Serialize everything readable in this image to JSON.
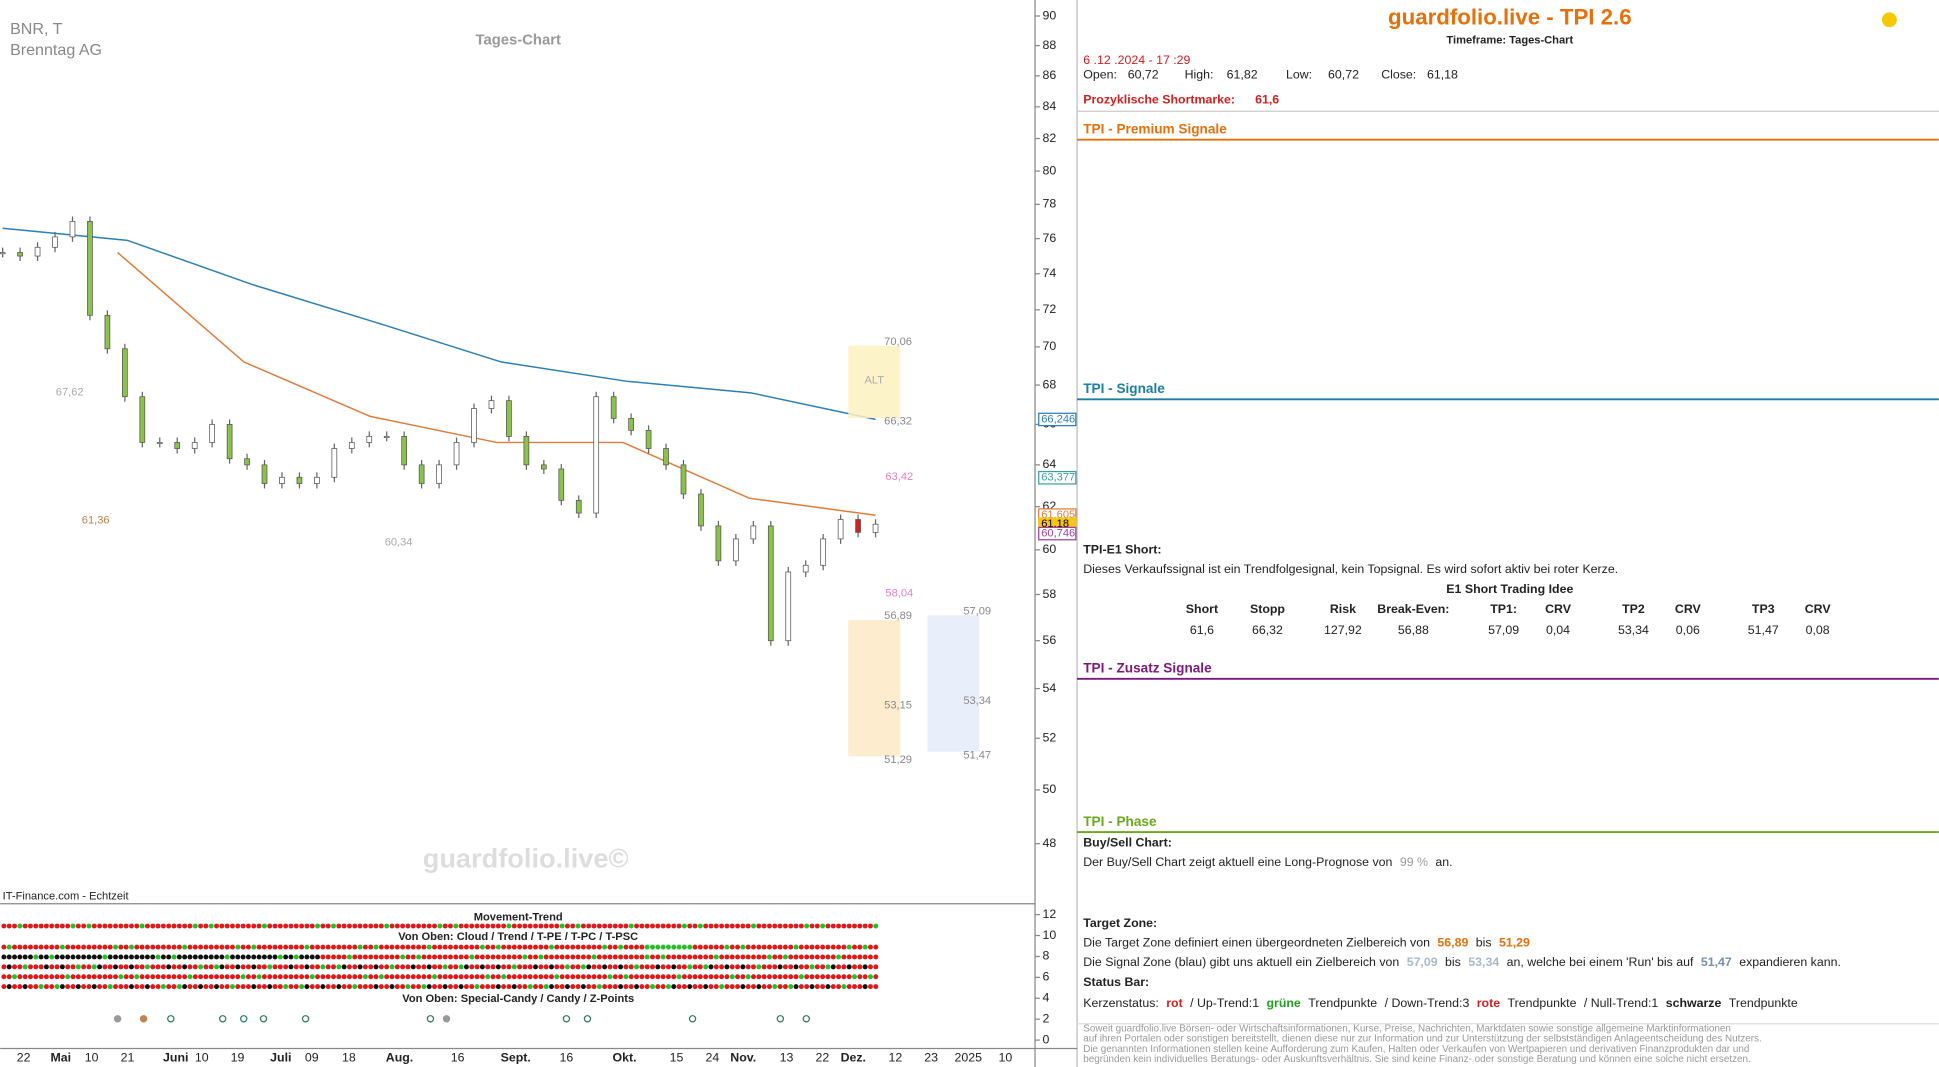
{
  "chart_data": {
    "type": "candlestick",
    "title": "Tages-Chart",
    "symbol": "BNR, T",
    "name": "Brenntag AG",
    "watermark": "guardfolio.live©",
    "source": "IT-Finance.com - Echtzeit",
    "x_labels": [
      "22",
      "Mai",
      "10",
      "21",
      "Juni",
      "10",
      "19",
      "Juli",
      "09",
      "18",
      "Aug.",
      "16",
      "Sept.",
      "16",
      "Okt.",
      "15",
      "24",
      "Nov.",
      "13",
      "22",
      "Dez.",
      "12",
      "23",
      "2025",
      "10"
    ],
    "values": [
      75.2,
      75,
      75.5,
      76.1,
      77,
      71.7,
      69.9,
      67.4,
      65.1,
      65.1,
      64.8,
      65.1,
      66,
      64.3,
      64,
      63.1,
      63.4,
      63.1,
      63.4,
      64.8,
      65.1,
      65.4,
      65.4,
      64,
      63.1,
      64,
      65.1,
      66.8,
      67.2,
      65.4,
      64,
      63.8,
      62.3,
      61.7,
      67.4,
      66.3,
      65.7,
      64.8,
      64,
      62.6,
      61.1,
      59.5,
      60.5,
      61.1,
      56,
      59,
      59.3,
      60.5,
      61.4,
      60.8,
      61.18
    ],
    "series": [
      {
        "color": "#2a7fb8",
        "values": [
          76.6,
          75.9,
          73.4,
          71.3,
          69.2,
          68.2,
          67.6,
          66.25
        ]
      },
      {
        "color": "#e07b39",
        "values": [
          75.2,
          69.2,
          66.4,
          65.1,
          65.1,
          62.4,
          61.6
        ]
      }
    ],
    "ylim": [
      45.9,
      91.1
    ],
    "log_scale": true,
    "yticks": [
      48,
      50,
      52,
      54,
      56,
      58,
      60,
      62,
      64,
      66,
      68,
      70,
      72,
      74,
      76,
      78,
      80,
      82,
      84,
      86,
      88,
      90
    ],
    "price_boxes": [
      {
        "value": 66.246,
        "label": "66,246",
        "color": "#2a7fb8"
      },
      {
        "value": 63.377,
        "label": "63,377",
        "color": "#3aa0a0"
      },
      {
        "value": 61.605,
        "label": "61,605",
        "color": "#e07b39"
      },
      {
        "value": 61.18,
        "label": "61,18",
        "color": "#f5c518"
      },
      {
        "value": 60.746,
        "label": "60,746",
        "color": "#a040a0"
      }
    ],
    "zones": [
      {
        "label": "ALT",
        "top": {
          "value": 70.06,
          "label": "70,06"
        },
        "bottom": {
          "value": 66.32,
          "label": "66,32"
        },
        "color": "#fdf1c0"
      },
      {
        "top": {
          "value": 56.89,
          "label": "56,89"
        },
        "mid": {
          "value": 53.15,
          "label": "53,15"
        },
        "bottom": {
          "value": 51.29,
          "label": "51,29"
        },
        "color": "#fde9c4"
      },
      {
        "top": {
          "value": 57.09,
          "label": "57,09"
        },
        "mid": {
          "value": 53.34,
          "label": "53,34"
        },
        "bottom": {
          "value": 51.47,
          "label": "51,47"
        },
        "color": "#e4ecf9"
      }
    ],
    "annotations": [
      {
        "value": 63.42,
        "label": "63,42",
        "color": "#e87fc0"
      },
      {
        "value": 58.04,
        "label": "58,04",
        "color": "#e87fc0"
      },
      {
        "value": 67.62,
        "label": "67,62",
        "color": "#aaa"
      },
      {
        "value": 61.36,
        "label": "61,36",
        "color": "#c08050"
      },
      {
        "value": 60.34,
        "label": "60,34",
        "color": "#aaa"
      }
    ],
    "lower_pane": {
      "titles": [
        "Movement-Trend",
        "Von Oben: Cloud / Trend / T-PE / T-PC / T-PSC",
        "Von Oben: Special-Candy / Candy / Z-Points"
      ],
      "ylim": [
        -0.8,
        12.8
      ],
      "yticks": [
        0,
        2,
        4,
        6,
        8,
        10,
        12
      ]
    }
  },
  "panel": {
    "title": "guardfolio.live - TPI 2.6",
    "timeframe": "Timeframe: Tages-Chart",
    "datetime": "6 .12 .2024  - 17 :29",
    "ohlc": [
      [
        "Open:",
        "60,72"
      ],
      [
        "High:",
        "61,82"
      ],
      [
        "Low:",
        "60,72"
      ],
      [
        "Close:",
        "61,18"
      ]
    ],
    "shortmark": [
      "Prozyklische Shortmarke:",
      "61,6"
    ],
    "sections": [
      {
        "title": "TPI - Premium Signale",
        "color": "#e8700a"
      },
      {
        "title": "TPI - Signale",
        "color": "#1a7fa0"
      },
      {
        "title": "TPI - Zusatz Signale",
        "color": "#7a1a7a"
      },
      {
        "title": "TPI - Phase",
        "color": "#6aaa1a"
      }
    ],
    "e1": {
      "heading": "TPI-E1 Short:",
      "text": "Dieses Verkaufssignal ist ein Trendfolgesignal, kein Topsignal. Es wird sofort aktiv bei roter Kerze.",
      "table_title": "E1 Short Trading Idee",
      "header": [
        "Short",
        "Stopp",
        "Risk",
        "Break-Even:",
        "TP1:",
        "CRV",
        "TP2",
        "CRV",
        "TP3",
        "CRV"
      ],
      "row": [
        "61,6",
        "66,32",
        "127,92",
        "56,88",
        "57,09",
        "0,04",
        "53,34",
        "0,06",
        "51,47",
        "0,08"
      ]
    },
    "buysell": {
      "heading": "Buy/Sell Chart:",
      "runs": [
        "Der Buy/Sell Chart zeigt aktuell eine Long-Prognose von",
        "99 %",
        "an."
      ]
    },
    "target": {
      "heading": "Target Zone:",
      "line1": [
        "Die Target Zone definiert einen übergeordneten Zielbereich von",
        "56,89",
        "bis",
        "51,29"
      ],
      "line2": [
        "Die Signal Zone (blau) gibt uns aktuell ein Zielbereich von",
        "57,09",
        "bis",
        "53,34",
        "an, welche bei einem 'Run' bis auf",
        "51,47",
        "expandieren kann."
      ]
    },
    "status": {
      "heading": "Status Bar:",
      "runs": [
        "Kerzenstatus:",
        "rot",
        "/ Up-Trend:1",
        "grüne",
        "Trendpunkte",
        "/ Down-Trend:3",
        "rote",
        "Trendpunkte",
        "/ Null-Trend:1",
        "schwarze",
        "Trendpunkte"
      ]
    },
    "disclaimer": [
      "Soweit guardfolio.live Börsen- oder Wirtschaftsinformationen, Kurse, Preise, Nachrichten, Marktdaten sowie sonstige allgemeine Marktinformationen",
      "auf ihren Portalen oder sonstigen bereitstellt, dienen diese nur zur Information und zur Unterstützung der selbstständigen Anlageentscheidung des Nutzers.",
      "Die genannten Informationen stellen keine Aufforderung zum Kaufen, Halten oder Verkaufen von Wertpapieren und derivativen Finanzprodukten dar und",
      "begründen kein individuelles Beratungs- oder Auskunftsverhältnis. Sie sind keine Finanz- oder sonstige Beratung und können eine solche nicht ersetzen."
    ]
  }
}
